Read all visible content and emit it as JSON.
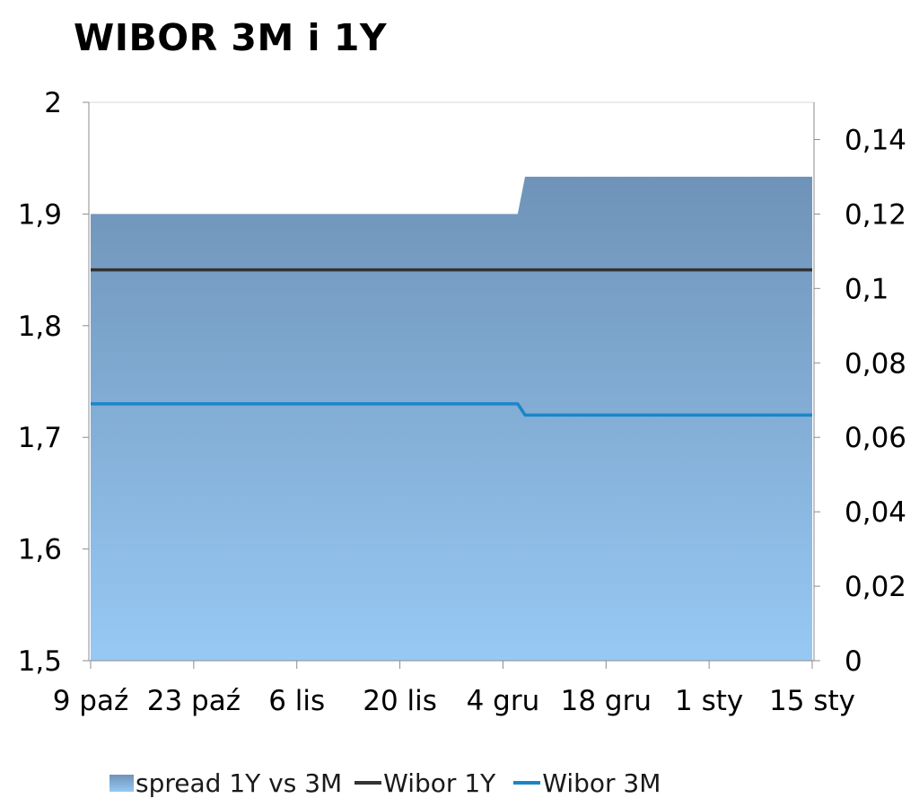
{
  "chart_data": {
    "type": "area",
    "title": "WIBOR 3M i 1Y",
    "categories": [
      "9 paź",
      "23 paź",
      "6 lis",
      "20 lis",
      "4 gru",
      "18 gru",
      "1 sty",
      "15 sty"
    ],
    "x_ticks": [
      "2012-10-09",
      "2012-10-23",
      "2012-11-06",
      "2012-11-20",
      "2012-12-04",
      "2012-12-18",
      "2013-01-01",
      "2013-01-15"
    ],
    "y_left": {
      "ticks": [
        "1,5",
        "1,6",
        "1,7",
        "1,8",
        "1,9",
        "2"
      ],
      "lim": [
        1.5,
        2.0
      ]
    },
    "y_right": {
      "ticks": [
        "0",
        "0,02",
        "0,04",
        "0,06",
        "0,08",
        "0,1",
        "0,12",
        "0,14"
      ],
      "lim": [
        0,
        0.15
      ]
    },
    "grid": false,
    "legend_position": "bottom",
    "series": [
      {
        "name": "spread 1Y vs 3M",
        "kind": "area",
        "axis": "right",
        "color": "#6f93b8",
        "color_bottom": "#97c9f4",
        "points": [
          [
            "2012-10-09",
            0.12
          ],
          [
            "2012-12-06",
            0.12
          ],
          [
            "2012-12-07",
            0.13
          ],
          [
            "2013-01-15",
            0.13
          ]
        ]
      },
      {
        "name": "Wibor 1Y",
        "kind": "line",
        "axis": "left",
        "color": "#333333",
        "points": [
          [
            "2012-10-09",
            1.85
          ],
          [
            "2013-01-15",
            1.85
          ]
        ]
      },
      {
        "name": "Wibor 3M",
        "kind": "line",
        "axis": "left",
        "color": "#1a86c8",
        "points": [
          [
            "2012-10-09",
            1.73
          ],
          [
            "2012-12-06",
            1.73
          ],
          [
            "2012-12-07",
            1.72
          ],
          [
            "2013-01-15",
            1.72
          ]
        ]
      }
    ]
  }
}
